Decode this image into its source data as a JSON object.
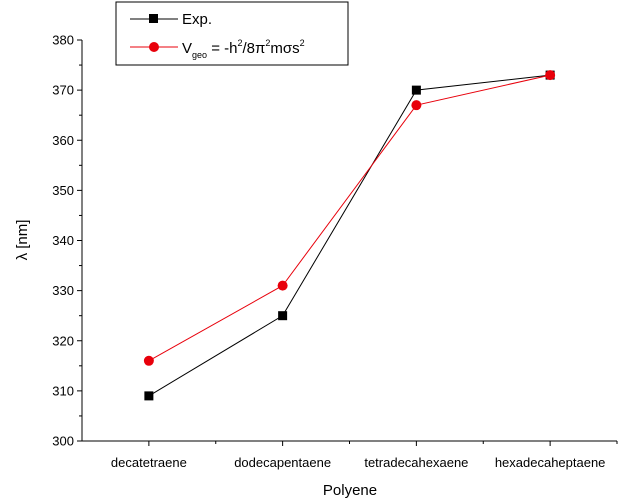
{
  "chart_data": {
    "type": "line",
    "categories": [
      "decatetraene",
      "dodecapentaene",
      "tetradecahexaene",
      "hexadecaheptaene"
    ],
    "series": [
      {
        "name": "Exp.",
        "values": [
          309,
          325,
          370,
          373
        ],
        "color": "#000000",
        "marker": "square"
      },
      {
        "name_parts": {
          "base": "V",
          "sub": "geo",
          "eq": " = -h",
          "sup1": "2",
          "mid": "/8π",
          "sup2": "2",
          "tail": "mσs",
          "sup3": "2"
        },
        "values": [
          316,
          331,
          367,
          373
        ],
        "color": "#e8000b",
        "marker": "circle"
      }
    ],
    "xlabel": "Polyene",
    "ylabel": "λ [nm]",
    "ylim": [
      300,
      380
    ],
    "yticks": [
      "300",
      "310",
      "320",
      "330",
      "340",
      "350",
      "360",
      "370",
      "380"
    ],
    "grid": false,
    "legend_position": "top-left"
  }
}
